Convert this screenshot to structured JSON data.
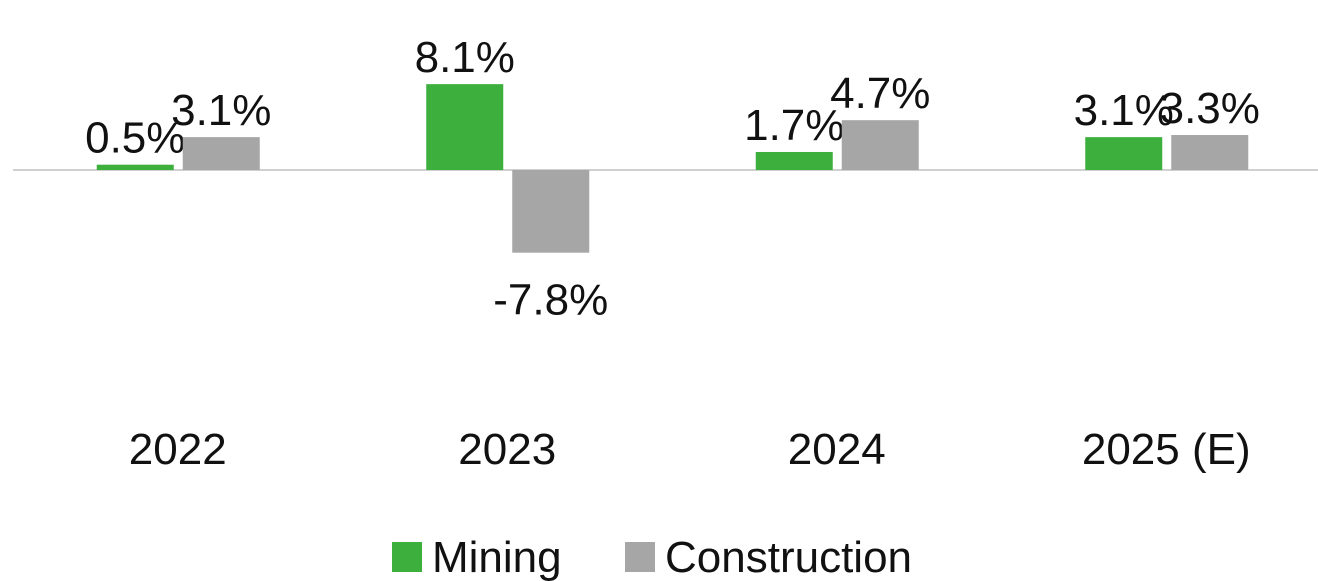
{
  "chart_data": {
    "type": "bar",
    "categories": [
      "2022",
      "2023",
      "2024",
      "2025 (E)"
    ],
    "series": [
      {
        "name": "Mining",
        "color": "#3daf3d",
        "values": [
          0.5,
          8.1,
          1.7,
          3.1
        ],
        "value_labels": [
          "0.5%",
          "8.1%",
          "1.7%",
          "3.1%"
        ]
      },
      {
        "name": "Construction",
        "color": "#a6a6a6",
        "values": [
          3.1,
          -7.8,
          4.7,
          3.3
        ],
        "value_labels": [
          "3.1%",
          "-7.8%",
          "4.7%",
          "3.3%"
        ]
      }
    ]
  }
}
